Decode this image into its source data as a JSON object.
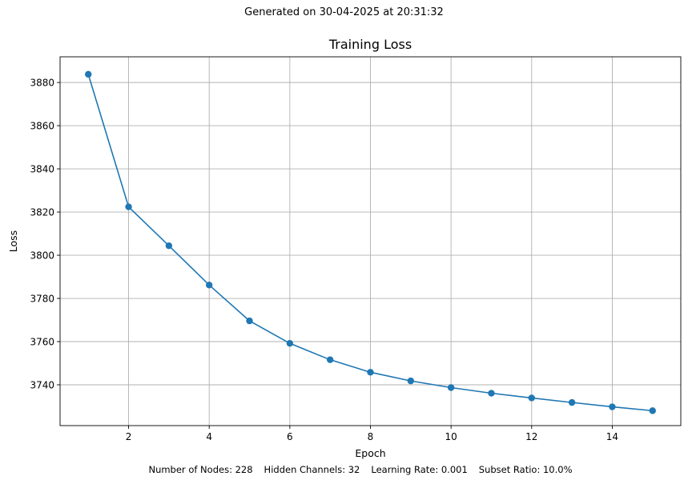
{
  "header_text": "Generated on 30-04-2025 at 20:31:32",
  "footer": {
    "items": [
      "Number of Nodes: 228",
      "Hidden Channels: 32",
      "Learning Rate: 0.001",
      "Subset Ratio: 10.0%"
    ]
  },
  "colors": {
    "line": "#1f77b4",
    "grid": "#b0b0b0",
    "axis": "#000000"
  },
  "chart_data": {
    "type": "line",
    "title": "Training Loss",
    "xlabel": "Epoch",
    "ylabel": "Loss",
    "x": [
      1,
      2,
      3,
      4,
      5,
      6,
      7,
      8,
      9,
      10,
      11,
      12,
      13,
      14,
      15
    ],
    "series": [
      {
        "values": [
          3883.8,
          3822.4,
          3804.4,
          3786.2,
          3769.6,
          3759.2,
          3751.6,
          3745.8,
          3741.8,
          3738.7,
          3736.1,
          3733.9,
          3731.8,
          3729.8,
          3728.0
        ],
        "marker": "circle"
      }
    ],
    "xlim": [
      0.3,
      15.7
    ],
    "ylim": [
      3721.1,
      3891.9
    ],
    "xticks": [
      2,
      4,
      6,
      8,
      10,
      12,
      14
    ],
    "yticks": [
      3740,
      3760,
      3780,
      3800,
      3820,
      3840,
      3860,
      3880
    ],
    "grid": true,
    "legend": "none"
  }
}
